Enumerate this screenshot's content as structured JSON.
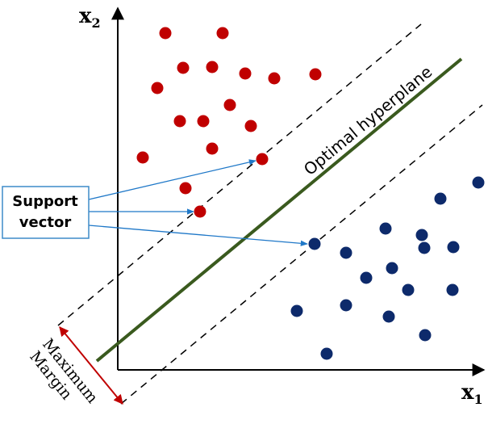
{
  "axes": {
    "x_label": "x",
    "x_sub": "1",
    "y_label": "x",
    "y_sub": "2"
  },
  "labels": {
    "hyperplane": "Optimal hyperplane",
    "support_vector_line1": "Support",
    "support_vector_line2": "vector",
    "margin_line1": "Maximum",
    "margin_line2": "Margin"
  },
  "colors": {
    "class_a": "#c00000",
    "class_b": "#0d2a6b",
    "hyperplane": "#3a5a1e",
    "arrow": "#1f78c8",
    "margin_arrow": "#c00000",
    "box_border": "#3d8bc9"
  },
  "points": {
    "class_a": [
      [
        205,
        41
      ],
      [
        276,
        41
      ],
      [
        227,
        84
      ],
      [
        263,
        83
      ],
      [
        304,
        91
      ],
      [
        340,
        97
      ],
      [
        391,
        92
      ],
      [
        195,
        109
      ],
      [
        285,
        130
      ],
      [
        223,
        150
      ],
      [
        252,
        150
      ],
      [
        311,
        156
      ],
      [
        263,
        184
      ],
      [
        177,
        195
      ],
      [
        325,
        197
      ],
      [
        230,
        233
      ],
      [
        248,
        262
      ]
    ],
    "class_b": [
      [
        593,
        226
      ],
      [
        546,
        246
      ],
      [
        478,
        283
      ],
      [
        523,
        291
      ],
      [
        390,
        302
      ],
      [
        526,
        307
      ],
      [
        562,
        306
      ],
      [
        429,
        313
      ],
      [
        486,
        332
      ],
      [
        454,
        344
      ],
      [
        506,
        359
      ],
      [
        561,
        359
      ],
      [
        368,
        385
      ],
      [
        429,
        378
      ],
      [
        482,
        392
      ],
      [
        527,
        415
      ],
      [
        405,
        438
      ]
    ]
  },
  "support_vectors": [
    [
      325,
      197
    ],
    [
      248,
      262
    ],
    [
      390,
      302
    ]
  ]
}
